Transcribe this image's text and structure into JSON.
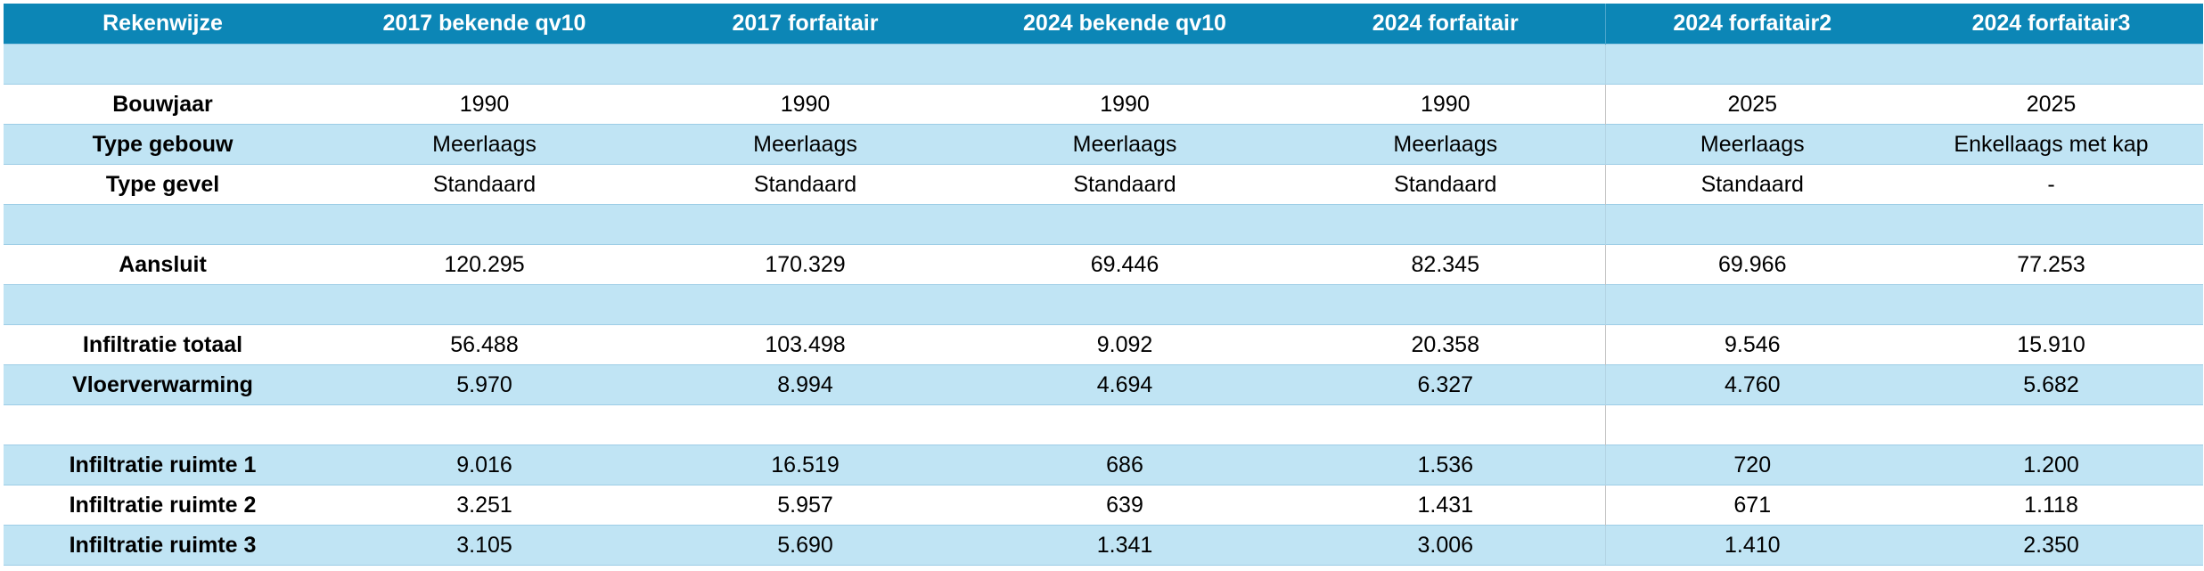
{
  "header": [
    "Rekenwijze",
    "2017 bekende qv10",
    "2017 forfaitair",
    "2024 bekende qv10",
    "2024 forfaitair",
    "2024 forfaitair2",
    "2024 forfaitair3"
  ],
  "rows": [
    {
      "style": "band",
      "label": "",
      "values": [
        "",
        "",
        "",
        "",
        "",
        ""
      ]
    },
    {
      "style": "plain",
      "label": "Bouwjaar",
      "values": [
        "1990",
        "1990",
        "1990",
        "1990",
        "2025",
        "2025"
      ]
    },
    {
      "style": "band",
      "label": "Type gebouw",
      "values": [
        "Meerlaags",
        "Meerlaags",
        "Meerlaags",
        "Meerlaags",
        "Meerlaags",
        "Enkellaags met kap"
      ]
    },
    {
      "style": "plain",
      "label": "Type gevel",
      "values": [
        "Standaard",
        "Standaard",
        "Standaard",
        "Standaard",
        "Standaard",
        "-"
      ]
    },
    {
      "style": "band",
      "label": "",
      "values": [
        "",
        "",
        "",
        "",
        "",
        ""
      ]
    },
    {
      "style": "plain",
      "label": "Aansluit",
      "values": [
        "120.295",
        "170.329",
        "69.446",
        "82.345",
        "69.966",
        "77.253"
      ]
    },
    {
      "style": "band",
      "label": "",
      "values": [
        "",
        "",
        "",
        "",
        "",
        ""
      ]
    },
    {
      "style": "plain",
      "label": "Infiltratie totaal",
      "values": [
        "56.488",
        "103.498",
        "9.092",
        "20.358",
        "9.546",
        "15.910"
      ]
    },
    {
      "style": "band",
      "label": "Vloerverwarming",
      "values": [
        "5.970",
        "8.994",
        "4.694",
        "6.327",
        "4.760",
        "5.682"
      ]
    },
    {
      "style": "plain",
      "label": "",
      "values": [
        "",
        "",
        "",
        "",
        "",
        ""
      ]
    },
    {
      "style": "band",
      "label": "Infiltratie ruimte 1",
      "values": [
        "9.016",
        "16.519",
        "686",
        "1.536",
        "720",
        "1.200"
      ]
    },
    {
      "style": "plain",
      "label": "Infiltratie ruimte 2",
      "values": [
        "3.251",
        "5.957",
        "639",
        "1.431",
        "671",
        "1.118"
      ]
    },
    {
      "style": "band",
      "label": "Infiltratie ruimte 3",
      "values": [
        "3.105",
        "5.690",
        "1.341",
        "3.006",
        "1.410",
        "2.350"
      ]
    }
  ]
}
